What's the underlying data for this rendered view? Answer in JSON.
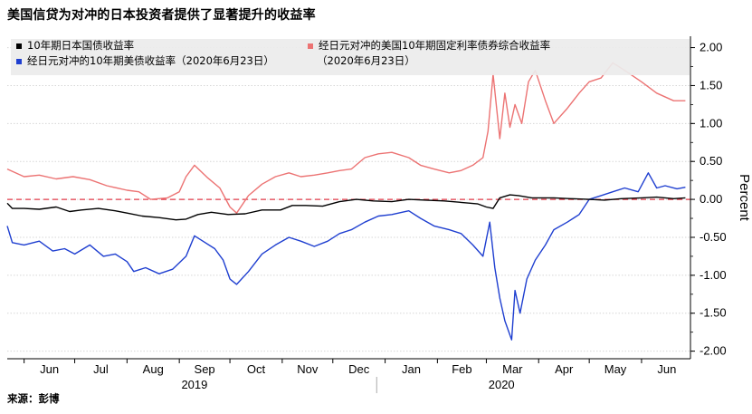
{
  "title": "美国信贷为对冲的日本投资者提供了显著提升的收益率",
  "source": "来源：彭博",
  "chart_data": {
    "type": "line",
    "ylabel": "Percent",
    "ylim": [
      -2.1,
      2.15
    ],
    "y_ticks": [
      {
        "value": 2.0,
        "label": "2.00"
      },
      {
        "value": 1.5,
        "label": "1.50"
      },
      {
        "value": 1.0,
        "label": "1.00"
      },
      {
        "value": 0.5,
        "label": "0.50"
      },
      {
        "value": 0.0,
        "label": "0.00"
      },
      {
        "value": -0.5,
        "label": "-0.50"
      },
      {
        "value": -1.0,
        "label": "-1.00"
      },
      {
        "value": -1.5,
        "label": "-1.50"
      },
      {
        "value": -2.0,
        "label": "-2.00"
      }
    ],
    "x_range": [
      "2019-05-22",
      "2020-06-30"
    ],
    "x_ticks": [
      {
        "label": "Jun",
        "date": "2019-06-01"
      },
      {
        "label": "Jul",
        "date": "2019-07-01"
      },
      {
        "label": "Aug",
        "date": "2019-08-01"
      },
      {
        "label": "Sep",
        "date": "2019-09-01"
      },
      {
        "label": "Oct",
        "date": "2019-10-01"
      },
      {
        "label": "Nov",
        "date": "2019-11-01"
      },
      {
        "label": "Dec",
        "date": "2019-12-01"
      },
      {
        "label": "Jan",
        "date": "2020-01-01"
      },
      {
        "label": "Feb",
        "date": "2020-02-01"
      },
      {
        "label": "Mar",
        "date": "2020-03-01"
      },
      {
        "label": "Apr",
        "date": "2020-04-01"
      },
      {
        "label": "May",
        "date": "2020-05-01"
      },
      {
        "label": "Jun",
        "date": "2020-06-01"
      }
    ],
    "year_labels": [
      {
        "label": "2019",
        "date": "2019-09-10"
      },
      {
        "label": "2020",
        "date": "2020-03-10"
      }
    ],
    "year_divider_date": "2019-12-27",
    "reference_line": {
      "value": 0,
      "color": "#e23b4a"
    },
    "series": [
      {
        "name": "10年期日本国债收益率",
        "color": "#000000",
        "points": [
          [
            "2019-05-22",
            -0.05
          ],
          [
            "2019-05-25",
            -0.12
          ],
          [
            "2019-06-01",
            -0.12
          ],
          [
            "2019-06-10",
            -0.13
          ],
          [
            "2019-06-20",
            -0.1
          ],
          [
            "2019-06-28",
            -0.16
          ],
          [
            "2019-07-05",
            -0.14
          ],
          [
            "2019-07-15",
            -0.12
          ],
          [
            "2019-07-25",
            -0.15
          ],
          [
            "2019-08-01",
            -0.18
          ],
          [
            "2019-08-10",
            -0.22
          ],
          [
            "2019-08-20",
            -0.24
          ],
          [
            "2019-08-30",
            -0.27
          ],
          [
            "2019-09-05",
            -0.26
          ],
          [
            "2019-09-12",
            -0.2
          ],
          [
            "2019-09-20",
            -0.17
          ],
          [
            "2019-09-30",
            -0.2
          ],
          [
            "2019-10-10",
            -0.19
          ],
          [
            "2019-10-20",
            -0.14
          ],
          [
            "2019-10-31",
            -0.14
          ],
          [
            "2019-11-07",
            -0.08
          ],
          [
            "2019-11-15",
            -0.08
          ],
          [
            "2019-11-25",
            -0.09
          ],
          [
            "2019-12-05",
            -0.03
          ],
          [
            "2019-12-15",
            0.0
          ],
          [
            "2019-12-25",
            -0.02
          ],
          [
            "2020-01-05",
            -0.03
          ],
          [
            "2020-01-15",
            0.0
          ],
          [
            "2020-01-25",
            -0.01
          ],
          [
            "2020-02-05",
            -0.02
          ],
          [
            "2020-02-15",
            -0.04
          ],
          [
            "2020-02-25",
            -0.06
          ],
          [
            "2020-03-01",
            -0.1
          ],
          [
            "2020-03-05",
            -0.12
          ],
          [
            "2020-03-09",
            0.02
          ],
          [
            "2020-03-15",
            0.06
          ],
          [
            "2020-03-20",
            0.05
          ],
          [
            "2020-03-28",
            0.02
          ],
          [
            "2020-04-10",
            0.02
          ],
          [
            "2020-04-20",
            0.01
          ],
          [
            "2020-05-01",
            0.0
          ],
          [
            "2020-05-10",
            -0.01
          ],
          [
            "2020-05-20",
            0.01
          ],
          [
            "2020-06-01",
            0.02
          ],
          [
            "2020-06-10",
            0.03
          ],
          [
            "2020-06-20",
            0.01
          ],
          [
            "2020-06-27",
            0.02
          ]
        ]
      },
      {
        "name": "经日元对冲的10年期美债收益率（2020年6月23日）",
        "color": "#1f3fd0",
        "points": [
          [
            "2019-05-22",
            -0.35
          ],
          [
            "2019-05-25",
            -0.57
          ],
          [
            "2019-06-01",
            -0.6
          ],
          [
            "2019-06-10",
            -0.55
          ],
          [
            "2019-06-18",
            -0.68
          ],
          [
            "2019-06-25",
            -0.65
          ],
          [
            "2019-07-01",
            -0.72
          ],
          [
            "2019-07-10",
            -0.6
          ],
          [
            "2019-07-18",
            -0.75
          ],
          [
            "2019-07-25",
            -0.72
          ],
          [
            "2019-08-01",
            -0.82
          ],
          [
            "2019-08-05",
            -0.95
          ],
          [
            "2019-08-12",
            -0.9
          ],
          [
            "2019-08-20",
            -0.98
          ],
          [
            "2019-08-28",
            -0.92
          ],
          [
            "2019-09-05",
            -0.75
          ],
          [
            "2019-09-10",
            -0.48
          ],
          [
            "2019-09-15",
            -0.55
          ],
          [
            "2019-09-22",
            -0.65
          ],
          [
            "2019-09-27",
            -0.8
          ],
          [
            "2019-10-01",
            -1.05
          ],
          [
            "2019-10-05",
            -1.12
          ],
          [
            "2019-10-12",
            -0.95
          ],
          [
            "2019-10-20",
            -0.72
          ],
          [
            "2019-10-28",
            -0.6
          ],
          [
            "2019-11-05",
            -0.5
          ],
          [
            "2019-11-12",
            -0.55
          ],
          [
            "2019-11-20",
            -0.62
          ],
          [
            "2019-11-28",
            -0.55
          ],
          [
            "2019-12-05",
            -0.45
          ],
          [
            "2019-12-12",
            -0.4
          ],
          [
            "2019-12-20",
            -0.3
          ],
          [
            "2019-12-28",
            -0.22
          ],
          [
            "2020-01-05",
            -0.2
          ],
          [
            "2020-01-15",
            -0.15
          ],
          [
            "2020-01-22",
            -0.25
          ],
          [
            "2020-01-30",
            -0.35
          ],
          [
            "2020-02-08",
            -0.4
          ],
          [
            "2020-02-15",
            -0.45
          ],
          [
            "2020-02-22",
            -0.6
          ],
          [
            "2020-02-28",
            -0.75
          ],
          [
            "2020-03-03",
            -0.3
          ],
          [
            "2020-03-06",
            -0.9
          ],
          [
            "2020-03-09",
            -1.3
          ],
          [
            "2020-03-12",
            -1.6
          ],
          [
            "2020-03-16",
            -1.85
          ],
          [
            "2020-03-18",
            -1.2
          ],
          [
            "2020-03-21",
            -1.5
          ],
          [
            "2020-03-25",
            -1.05
          ],
          [
            "2020-03-30",
            -0.8
          ],
          [
            "2020-04-05",
            -0.6
          ],
          [
            "2020-04-10",
            -0.4
          ],
          [
            "2020-04-18",
            -0.3
          ],
          [
            "2020-04-25",
            -0.2
          ],
          [
            "2020-05-01",
            0.0
          ],
          [
            "2020-05-08",
            0.05
          ],
          [
            "2020-05-15",
            0.1
          ],
          [
            "2020-05-22",
            0.15
          ],
          [
            "2020-05-30",
            0.1
          ],
          [
            "2020-06-05",
            0.35
          ],
          [
            "2020-06-10",
            0.15
          ],
          [
            "2020-06-15",
            0.18
          ],
          [
            "2020-06-22",
            0.14
          ],
          [
            "2020-06-27",
            0.16
          ]
        ]
      },
      {
        "name": "经日元对冲的美国10年期固定利率债券综合收益率（2020年6月23日）",
        "color": "#ec7373",
        "points": [
          [
            "2019-05-22",
            0.4
          ],
          [
            "2019-06-01",
            0.3
          ],
          [
            "2019-06-10",
            0.32
          ],
          [
            "2019-06-20",
            0.27
          ],
          [
            "2019-06-30",
            0.3
          ],
          [
            "2019-07-10",
            0.26
          ],
          [
            "2019-07-20",
            0.18
          ],
          [
            "2019-08-01",
            0.12
          ],
          [
            "2019-08-08",
            0.1
          ],
          [
            "2019-08-15",
            0.0
          ],
          [
            "2019-08-25",
            0.02
          ],
          [
            "2019-09-01",
            0.1
          ],
          [
            "2019-09-05",
            0.3
          ],
          [
            "2019-09-10",
            0.45
          ],
          [
            "2019-09-18",
            0.28
          ],
          [
            "2019-09-25",
            0.15
          ],
          [
            "2019-10-01",
            -0.1
          ],
          [
            "2019-10-05",
            -0.18
          ],
          [
            "2019-10-12",
            0.05
          ],
          [
            "2019-10-20",
            0.2
          ],
          [
            "2019-10-28",
            0.3
          ],
          [
            "2019-11-05",
            0.35
          ],
          [
            "2019-11-12",
            0.3
          ],
          [
            "2019-11-20",
            0.32
          ],
          [
            "2019-11-28",
            0.35
          ],
          [
            "2019-12-05",
            0.38
          ],
          [
            "2019-12-12",
            0.4
          ],
          [
            "2019-12-20",
            0.55
          ],
          [
            "2019-12-28",
            0.6
          ],
          [
            "2020-01-05",
            0.62
          ],
          [
            "2020-01-15",
            0.55
          ],
          [
            "2020-01-22",
            0.45
          ],
          [
            "2020-01-30",
            0.4
          ],
          [
            "2020-02-08",
            0.35
          ],
          [
            "2020-02-15",
            0.38
          ],
          [
            "2020-02-22",
            0.45
          ],
          [
            "2020-02-28",
            0.55
          ],
          [
            "2020-03-02",
            0.9
          ],
          [
            "2020-03-05",
            1.65
          ],
          [
            "2020-03-09",
            0.8
          ],
          [
            "2020-03-12",
            1.4
          ],
          [
            "2020-03-15",
            0.95
          ],
          [
            "2020-03-18",
            1.25
          ],
          [
            "2020-03-22",
            1.0
          ],
          [
            "2020-03-26",
            1.55
          ],
          [
            "2020-03-30",
            1.7
          ],
          [
            "2020-04-05",
            1.3
          ],
          [
            "2020-04-10",
            1.0
          ],
          [
            "2020-04-18",
            1.2
          ],
          [
            "2020-04-25",
            1.4
          ],
          [
            "2020-05-01",
            1.55
          ],
          [
            "2020-05-08",
            1.6
          ],
          [
            "2020-05-15",
            1.8
          ],
          [
            "2020-05-22",
            1.7
          ],
          [
            "2020-06-01",
            1.55
          ],
          [
            "2020-06-10",
            1.4
          ],
          [
            "2020-06-20",
            1.3
          ],
          [
            "2020-06-27",
            1.3
          ]
        ]
      }
    ]
  }
}
